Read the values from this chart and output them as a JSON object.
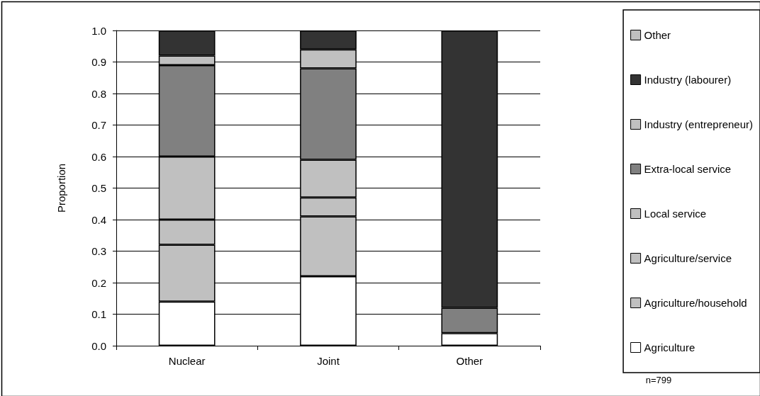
{
  "chart_data": {
    "type": "bar",
    "stacked": true,
    "ylabel": "Proportion",
    "categories": [
      "Nuclear",
      "Joint",
      "Other"
    ],
    "series": [
      {
        "name": "Agriculture",
        "color": "#ffffff",
        "values": [
          0.14,
          0.22,
          0.04
        ]
      },
      {
        "name": "Agriculture/household",
        "color": "#c0c0c0",
        "values": [
          0.18,
          0.19,
          0
        ]
      },
      {
        "name": "Agriculture/service",
        "color": "#c0c0c0",
        "values": [
          0.08,
          0.06,
          0
        ]
      },
      {
        "name": "Local service",
        "color": "#c0c0c0",
        "values": [
          0.2,
          0.12,
          0
        ]
      },
      {
        "name": "Extra-local service",
        "color": "#808080",
        "values": [
          0.29,
          0.29,
          0.08
        ]
      },
      {
        "name": "Industry (entrepreneur)",
        "color": "#c0c0c0",
        "values": [
          0.03,
          0.06,
          0
        ]
      },
      {
        "name": "Industry (labourer)",
        "color": "#333333",
        "values": [
          0.08,
          0.06,
          0.88
        ]
      },
      {
        "name": "Other",
        "color": "#c0c0c0",
        "values": [
          0,
          0,
          0
        ]
      }
    ],
    "ylim": [
      0,
      1
    ],
    "yticks": [
      {
        "value": 0,
        "label": "0.0"
      },
      {
        "value": 0.1,
        "label": "0.1"
      },
      {
        "value": 0.2,
        "label": "0.2"
      },
      {
        "value": 0.3,
        "label": "0.3"
      },
      {
        "value": 0.4,
        "label": "0.4"
      },
      {
        "value": 0.5,
        "label": "0.5"
      },
      {
        "value": 0.6,
        "label": "0.6"
      },
      {
        "value": 0.7,
        "label": "0.7"
      },
      {
        "value": 0.8,
        "label": "0.8"
      },
      {
        "value": 0.9,
        "label": "0.9"
      },
      {
        "value": 1,
        "label": "1.0"
      }
    ],
    "grid": "y",
    "legend": "right",
    "annotations": [
      "n=799"
    ]
  }
}
